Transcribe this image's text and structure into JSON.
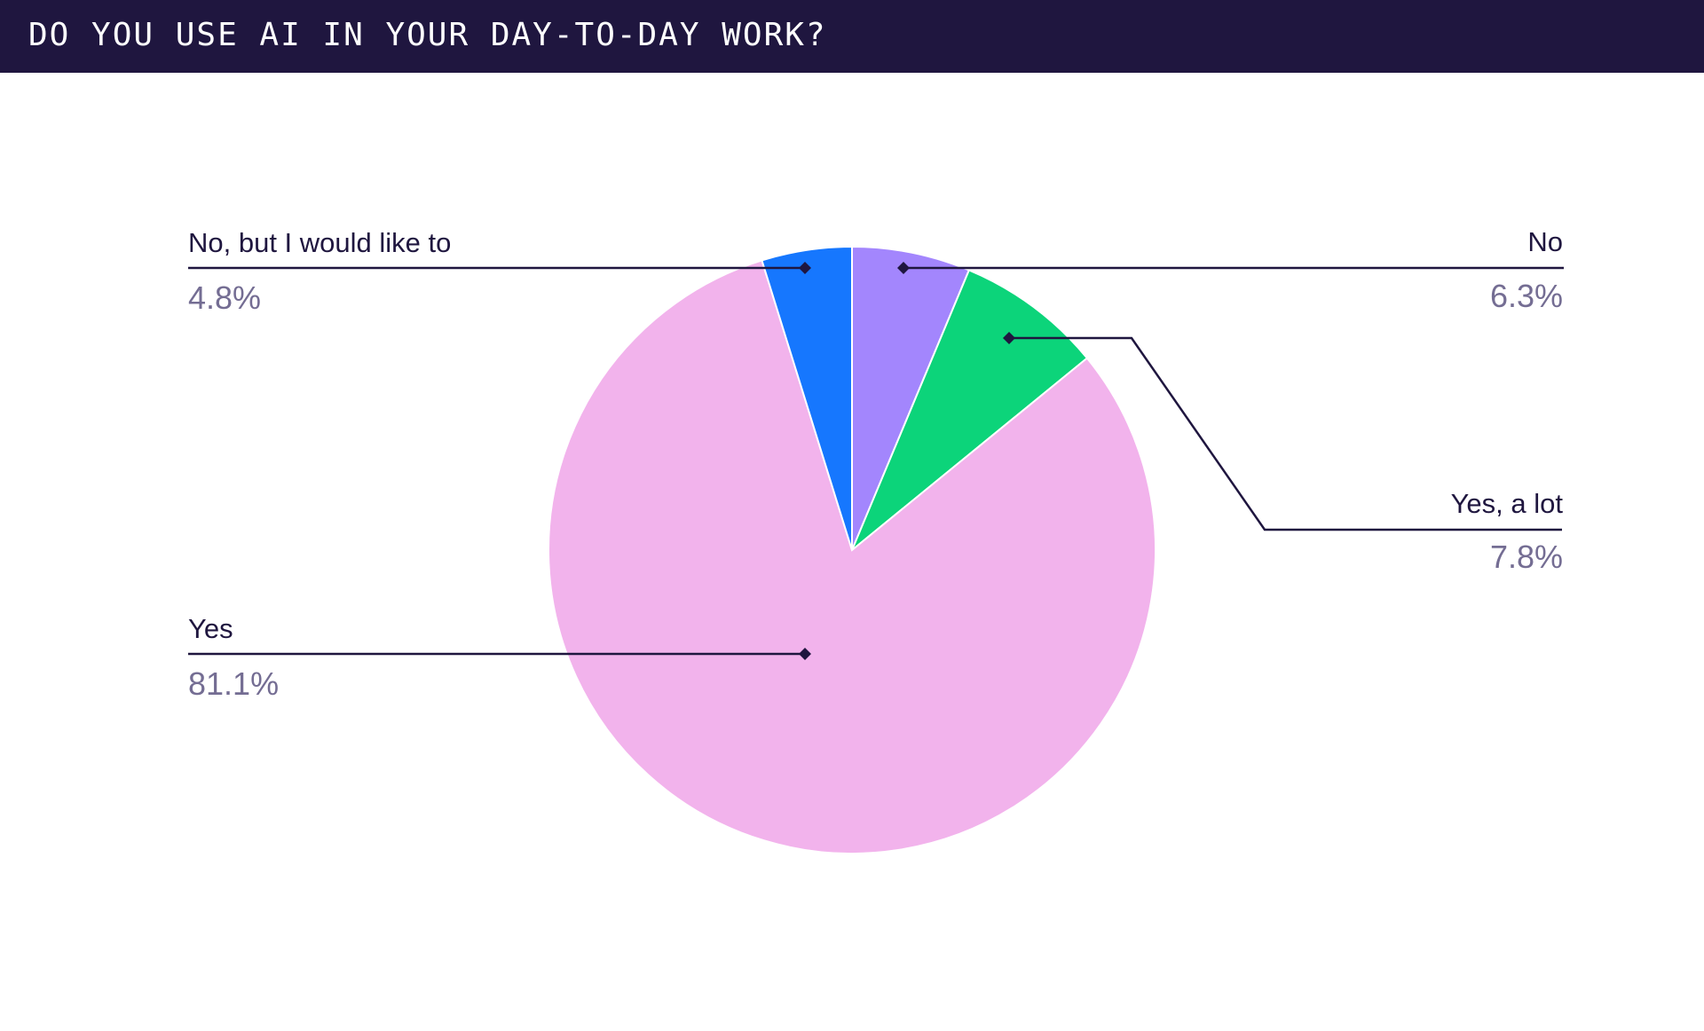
{
  "title": "DO YOU USE AI IN YOUR DAY-TO-DAY WORK?",
  "colors": {
    "header_bg": "#1f163f",
    "label_text": "#1f163f",
    "value_text": "#746d93",
    "leader_line": "#1f163f"
  },
  "chart_data": {
    "type": "pie",
    "title": "DO YOU USE AI IN YOUR DAY-TO-DAY WORK?",
    "start_angle_deg": 0,
    "direction": "clockwise",
    "slices": [
      {
        "label": "No",
        "value": 6.3,
        "display": "6.3%",
        "color": "#a386fd"
      },
      {
        "label": "Yes, a lot",
        "value": 7.8,
        "display": "7.8%",
        "color": "#0cd47a"
      },
      {
        "label": "Yes",
        "value": 81.1,
        "display": "81.1%",
        "color": "#f2b3ec"
      },
      {
        "label": "No, but I would like to",
        "value": 4.8,
        "display": "4.8%",
        "color": "#1677fe"
      }
    ]
  }
}
